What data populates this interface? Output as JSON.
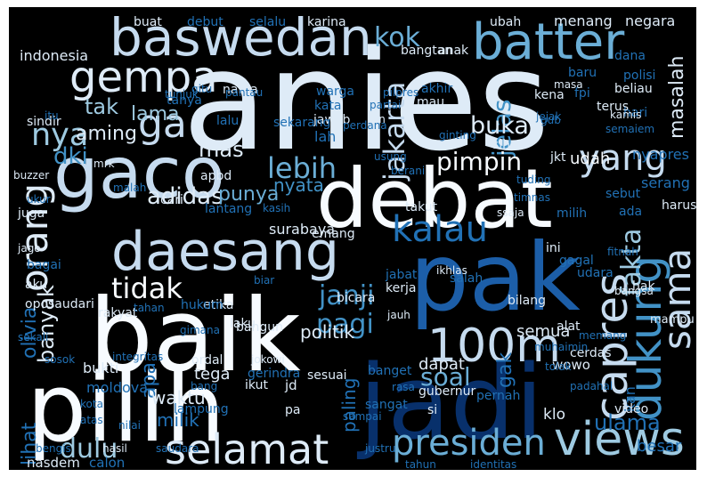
{
  "words": [
    {
      "text": "anies",
      "color": "#deebf7",
      "vertical": false
    },
    {
      "text": "baik",
      "color": "#f7fbff",
      "vertical": false
    },
    {
      "text": "pilih",
      "color": "#f7fbff",
      "vertical": false
    },
    {
      "text": "jadi",
      "color": "#08306b",
      "vertical": false
    },
    {
      "text": "pak",
      "color": "#1c5ea8",
      "vertical": false
    },
    {
      "text": "debat",
      "color": "#f7fbff",
      "vertical": false
    },
    {
      "text": "gaco",
      "color": "#c6dbef",
      "vertical": false
    },
    {
      "text": "baswedan",
      "color": "#c6dbef",
      "vertical": false
    },
    {
      "text": "daesang",
      "color": "#c6dbef",
      "vertical": false
    },
    {
      "text": "batter",
      "color": "#6baed6",
      "vertical": false
    },
    {
      "text": "gempa",
      "color": "#deebf7",
      "vertical": false
    },
    {
      "text": "capres",
      "color": "#c6dbef",
      "vertical": true
    },
    {
      "text": "dukung",
      "color": "#4292c6",
      "vertical": true
    },
    {
      "text": "sama",
      "color": "#c6dbef",
      "vertical": true
    },
    {
      "text": "views",
      "color": "#9ecae1",
      "vertical": false
    },
    {
      "text": "100m",
      "color": "#c6dbef",
      "vertical": false
    },
    {
      "text": "selamat",
      "color": "#deebf7",
      "vertical": false
    },
    {
      "text": "presiden",
      "color": "#6baed6",
      "vertical": false
    },
    {
      "text": "orang",
      "color": "#deebf7",
      "vertical": true
    },
    {
      "text": "yang",
      "color": "#c6dbef",
      "vertical": false
    },
    {
      "text": "kalau",
      "color": "#2171b5",
      "vertical": false
    },
    {
      "text": "tidak",
      "color": "#f7fbff",
      "vertical": false
    },
    {
      "text": "ga",
      "color": "#c6dbef",
      "vertical": false
    },
    {
      "text": "nya",
      "color": "#9ecae1",
      "vertical": false
    },
    {
      "text": "jakarta",
      "color": "#c6dbef",
      "vertical": true
    },
    {
      "text": "jelas",
      "color": "#4292c6",
      "vertical": true
    },
    {
      "text": "kok",
      "color": "#6baed6",
      "vertical": false
    },
    {
      "text": "bukan",
      "color": "#deebf7",
      "vertical": false
    },
    {
      "text": "lebih",
      "color": "#6baed6",
      "vertical": false
    },
    {
      "text": "pimpin",
      "color": "#f7fbff",
      "vertical": false
    },
    {
      "text": "adidas",
      "color": "#deebf7",
      "vertical": false
    },
    {
      "text": "janji",
      "color": "#4292c6",
      "vertical": false
    },
    {
      "text": "pagi",
      "color": "#4292c6",
      "vertical": false
    },
    {
      "text": "fakta",
      "color": "#9ecae1",
      "vertical": true
    },
    {
      "text": "banyak",
      "color": "#deebf7",
      "vertical": true
    },
    {
      "text": "ulama",
      "color": "#2171b5",
      "vertical": false
    },
    {
      "text": "dulu",
      "color": "#9ecae1",
      "vertical": false
    },
    {
      "text": "soal",
      "color": "#6baed6",
      "vertical": false
    },
    {
      "text": "apa",
      "color": "#2171b5",
      "vertical": true
    },
    {
      "text": "lihat",
      "color": "#2171b5",
      "vertical": true
    },
    {
      "text": "olivia",
      "color": "#2171b5",
      "vertical": true
    },
    {
      "text": "masalah",
      "color": "#deebf7",
      "vertical": true
    },
    {
      "text": "dki",
      "color": "#4292c6",
      "vertical": false
    },
    {
      "text": "mas",
      "color": "#deebf7",
      "vertical": false
    },
    {
      "text": "punya",
      "color": "#6baed6",
      "vertical": false
    },
    {
      "text": "nyata",
      "color": "#4292c6",
      "vertical": false
    },
    {
      "text": "tak",
      "color": "#9ecae1",
      "vertical": false
    },
    {
      "text": "lama",
      "color": "#9ecae1",
      "vertical": false
    },
    {
      "text": "aming",
      "color": "#deebf7",
      "vertical": false
    },
    {
      "text": "politik",
      "color": "#deebf7",
      "vertical": false
    },
    {
      "text": "udah",
      "color": "#f7fbff",
      "vertical": false
    },
    {
      "text": "serang",
      "color": "#2171b5",
      "vertical": false
    },
    {
      "text": "surabaya",
      "color": "#deebf7",
      "vertical": false
    },
    {
      "text": "indonesia",
      "color": "#deebf7",
      "vertical": false
    },
    {
      "text": "menang",
      "color": "#deebf7",
      "vertical": false
    },
    {
      "text": "negara",
      "color": "#deebf7",
      "vertical": false
    },
    {
      "text": "gak",
      "color": "#2171b5",
      "vertical": true
    },
    {
      "text": "milik",
      "color": "#2171b5",
      "vertical": false
    },
    {
      "text": "waktu",
      "color": "#deebf7",
      "vertical": false
    },
    {
      "text": "tega",
      "color": "#deebf7",
      "vertical": false
    },
    {
      "text": "bukti",
      "color": "#deebf7",
      "vertical": false
    },
    {
      "text": "paling",
      "color": "#2171b5",
      "vertical": true
    },
    {
      "text": "klo",
      "color": "#deebf7",
      "vertical": false
    },
    {
      "text": "wowo",
      "color": "#deebf7",
      "vertical": false
    },
    {
      "text": "kan",
      "color": "#2171b5",
      "vertical": true
    },
    {
      "text": "dapat",
      "color": "#deebf7",
      "vertical": false
    },
    {
      "text": "semua",
      "color": "#deebf7",
      "vertical": false
    },
    {
      "text": "besar",
      "color": "#2171b5",
      "vertical": false
    },
    {
      "text": "nasdem",
      "color": "#deebf7",
      "vertical": false
    },
    {
      "text": "calon",
      "color": "#2171b5",
      "vertical": false
    },
    {
      "text": "moldova",
      "color": "#2171b5",
      "vertical": false
    },
    {
      "text": "buat",
      "color": "#deebf7",
      "vertical": false
    },
    {
      "text": "debut",
      "color": "#2171b5",
      "vertical": false
    },
    {
      "text": "selalu",
      "color": "#2171b5",
      "vertical": false
    },
    {
      "text": "karina",
      "color": "#deebf7",
      "vertical": false
    },
    {
      "text": "ubah",
      "color": "#deebf7",
      "vertical": false
    },
    {
      "text": "bangtan",
      "color": "#deebf7",
      "vertical": false
    },
    {
      "text": "anak",
      "color": "#deebf7",
      "vertical": false
    },
    {
      "text": "dana",
      "color": "#2171b5",
      "vertical": false
    },
    {
      "text": "polisi",
      "color": "#2171b5",
      "vertical": false
    },
    {
      "text": "beliau",
      "color": "#deebf7",
      "vertical": false
    },
    {
      "text": "baru",
      "color": "#2171b5",
      "vertical": false
    },
    {
      "text": "fpi",
      "color": "#2171b5",
      "vertical": false
    },
    {
      "text": "hari",
      "color": "#2171b5",
      "vertical": false
    },
    {
      "text": "terus",
      "color": "#deebf7",
      "vertical": false
    },
    {
      "text": "kena",
      "color": "#deebf7",
      "vertical": false
    },
    {
      "text": "mau",
      "color": "#deebf7",
      "vertical": false
    },
    {
      "text": "akhir",
      "color": "#2171b5",
      "vertical": false
    },
    {
      "text": "warga",
      "color": "#2171b5",
      "vertical": false
    },
    {
      "text": "kata",
      "color": "#2171b5",
      "vertical": false
    },
    {
      "text": "jawab",
      "color": "#deebf7",
      "vertical": false
    },
    {
      "text": "lah",
      "color": "#2171b5",
      "vertical": false
    },
    {
      "text": "sekarang",
      "color": "#2171b5",
      "vertical": false
    },
    {
      "text": "lalu",
      "color": "#2171b5",
      "vertical": false
    },
    {
      "text": "nama",
      "color": "#deebf7",
      "vertical": false
    },
    {
      "text": "tanya",
      "color": "#2171b5",
      "vertical": false
    },
    {
      "text": "sindir",
      "color": "#deebf7",
      "vertical": false
    },
    {
      "text": "sih",
      "color": "#deebf7",
      "vertical": false
    },
    {
      "text": "jkt",
      "color": "#deebf7",
      "vertical": false
    },
    {
      "text": "nyapres",
      "color": "#2171b5",
      "vertical": false
    },
    {
      "text": "sebut",
      "color": "#2171b5",
      "vertical": false
    },
    {
      "text": "harus",
      "color": "#deebf7",
      "vertical": false
    },
    {
      "text": "ada",
      "color": "#2171b5",
      "vertical": false
    },
    {
      "text": "milih",
      "color": "#2171b5",
      "vertical": false
    },
    {
      "text": "ini",
      "color": "#deebf7",
      "vertical": false
    },
    {
      "text": "gagal",
      "color": "#2171b5",
      "vertical": false
    },
    {
      "text": "udara",
      "color": "#2171b5",
      "vertical": false
    },
    {
      "text": "hak",
      "color": "#deebf7",
      "vertical": false
    },
    {
      "text": "bilang",
      "color": "#deebf7",
      "vertical": false
    },
    {
      "text": "jabat",
      "color": "#2171b5",
      "vertical": false
    },
    {
      "text": "salah",
      "color": "#2171b5",
      "vertical": false
    },
    {
      "text": "kerja",
      "color": "#deebf7",
      "vertical": false
    },
    {
      "text": "bicara",
      "color": "#deebf7",
      "vertical": false
    },
    {
      "text": "emang",
      "color": "#deebf7",
      "vertical": false
    },
    {
      "text": "takut",
      "color": "#deebf7",
      "vertical": false
    },
    {
      "text": "etika",
      "color": "#deebf7",
      "vertical": false
    },
    {
      "text": "hukum",
      "color": "#2171b5",
      "vertical": false
    },
    {
      "text": "laku",
      "color": "#deebf7",
      "vertical": false
    },
    {
      "text": "bangun",
      "color": "#deebf7",
      "vertical": false
    },
    {
      "text": "rakyat",
      "color": "#deebf7",
      "vertical": false
    },
    {
      "text": "aku",
      "color": "#deebf7",
      "vertical": false
    },
    {
      "text": "bagai",
      "color": "#2171b5",
      "vertical": false
    },
    {
      "text": "juga",
      "color": "#deebf7",
      "vertical": false
    },
    {
      "text": "cari",
      "color": "#deebf7",
      "vertical": false
    },
    {
      "text": "apbd",
      "color": "#deebf7",
      "vertical": false
    },
    {
      "text": "lantang",
      "color": "#2171b5",
      "vertical": false
    },
    {
      "text": "ordal",
      "color": "#deebf7",
      "vertical": false
    },
    {
      "text": "jd",
      "color": "#deebf7",
      "vertical": false
    },
    {
      "text": "pa",
      "color": "#deebf7",
      "vertical": false
    },
    {
      "text": "sesuai",
      "color": "#deebf7",
      "vertical": false
    },
    {
      "text": "ikut",
      "color": "#deebf7",
      "vertical": false
    },
    {
      "text": "lampung",
      "color": "#2171b5",
      "vertical": false
    },
    {
      "text": "gerindra",
      "color": "#2171b5",
      "vertical": false
    },
    {
      "text": "banget",
      "color": "#2171b5",
      "vertical": false
    },
    {
      "text": "gubernur",
      "color": "#deebf7",
      "vertical": false
    },
    {
      "text": "pernah",
      "color": "#2171b5",
      "vertical": false
    },
    {
      "text": "alat",
      "color": "#deebf7",
      "vertical": false
    },
    {
      "text": "cerdas",
      "color": "#deebf7",
      "vertical": false
    },
    {
      "text": "video",
      "color": "#deebf7",
      "vertical": false
    },
    {
      "text": "mampu",
      "color": "#deebf7",
      "vertical": false
    },
    {
      "text": "si",
      "color": "#deebf7",
      "vertical": false
    },
    {
      "text": "sangat",
      "color": "#2171b5",
      "vertical": false
    },
    {
      "text": "jauh",
      "color": "#deebf7",
      "vertical": false
    },
    {
      "text": "hasil",
      "color": "#deebf7",
      "vertical": false
    },
    {
      "text": "saudara",
      "color": "#2171b5",
      "vertical": false
    },
    {
      "text": "bengis",
      "color": "#2171b5",
      "vertical": false
    },
    {
      "text": "nilai",
      "color": "#2171b5",
      "vertical": false
    },
    {
      "text": "atas",
      "color": "#2171b5",
      "vertical": false
    },
    {
      "text": "kota",
      "color": "#2171b5",
      "vertical": false
    },
    {
      "text": "integritas",
      "color": "#2171b5",
      "vertical": false
    },
    {
      "text": "oposaudari",
      "color": "#deebf7",
      "vertical": false
    },
    {
      "text": "sosok",
      "color": "#2171b5",
      "vertical": false
    },
    {
      "text": "tahan",
      "color": "#2171b5",
      "vertical": false
    },
    {
      "text": "gimana",
      "color": "#2171b5",
      "vertical": false
    },
    {
      "text": "jokowi",
      "color": "#deebf7",
      "vertical": false
    },
    {
      "text": "ikhlas",
      "color": "#deebf7",
      "vertical": false
    },
    {
      "text": "muhaimin",
      "color": "#2171b5",
      "vertical": false
    },
    {
      "text": "padahal",
      "color": "#2171b5",
      "vertical": false
    },
    {
      "text": "tahun",
      "color": "#2171b5",
      "vertical": false
    },
    {
      "text": "identitas",
      "color": "#2171b5",
      "vertical": false
    },
    {
      "text": "justru",
      "color": "#2171b5",
      "vertical": false
    },
    {
      "text": "memang",
      "color": "#2171b5",
      "vertical": false
    },
    {
      "text": "tolak",
      "color": "#2171b5",
      "vertical": false
    },
    {
      "text": "buzzer",
      "color": "#deebf7",
      "vertical": false
    },
    {
      "text": "mrk",
      "color": "#deebf7",
      "vertical": false
    },
    {
      "text": "ukur",
      "color": "#2171b5",
      "vertical": false
    },
    {
      "text": "jago",
      "color": "#deebf7",
      "vertical": false
    },
    {
      "text": "kasih",
      "color": "#2171b5",
      "vertical": false
    },
    {
      "text": "malah",
      "color": "#2171b5",
      "vertical": false
    },
    {
      "text": "timnas",
      "color": "#2171b5",
      "vertical": false
    },
    {
      "text": "ssaja",
      "color": "#deebf7",
      "vertical": false
    },
    {
      "text": "tuding",
      "color": "#2171b5",
      "vertical": false
    },
    {
      "text": "usung",
      "color": "#2171b5",
      "vertical": false
    },
    {
      "text": "berani",
      "color": "#2171b5",
      "vertical": false
    },
    {
      "text": "ginting",
      "color": "#2171b5",
      "vertical": false
    },
    {
      "text": "ikn",
      "color": "#deebf7",
      "vertical": false
    },
    {
      "text": "perdana",
      "color": "#2171b5",
      "vertical": false
    },
    {
      "text": "partai",
      "color": "#2171b5",
      "vertical": false
    },
    {
      "text": "pilpres",
      "color": "#2171b5",
      "vertical": false
    },
    {
      "text": "gitu",
      "color": "#2171b5",
      "vertical": false
    },
    {
      "text": "masa",
      "color": "#deebf7",
      "vertical": false
    },
    {
      "text": "jejak",
      "color": "#2171b5",
      "vertical": false
    },
    {
      "text": "gub",
      "color": "#2171b5",
      "vertical": false
    },
    {
      "text": "kamis",
      "color": "#deebf7",
      "vertical": false
    },
    {
      "text": "semaiem",
      "color": "#2171b5",
      "vertical": false
    },
    {
      "text": "fitnah",
      "color": "#2171b5",
      "vertical": false
    },
    {
      "text": "bangsa",
      "color": "#deebf7",
      "vertical": false
    },
    {
      "text": "rasa",
      "color": "#2171b5",
      "vertical": false
    },
    {
      "text": "sampai",
      "color": "#2171b5",
      "vertical": false
    },
    {
      "text": "biar",
      "color": "#2171b5",
      "vertical": false
    },
    {
      "text": "pantau",
      "color": "#2171b5",
      "vertical": false
    },
    {
      "text": "itu",
      "color": "#2171b5",
      "vertical": false
    },
    {
      "text": "sekali",
      "color": "#2171b5",
      "vertical": false
    },
    {
      "text": "bang",
      "color": "#2171b5",
      "vertical": false
    },
    {
      "text": "tunjuk",
      "color": "#2171b5",
      "vertical": false
    }
  ]
}
